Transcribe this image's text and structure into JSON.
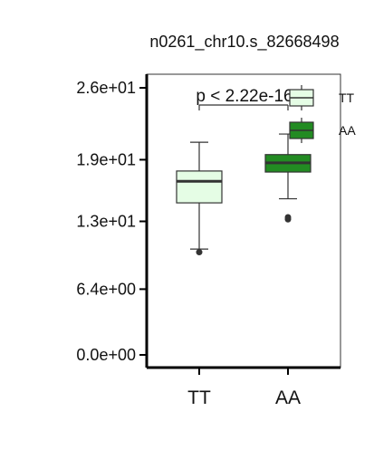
{
  "chart_data": {
    "type": "box",
    "title": "n0261_chr10.s_82668498",
    "xlabel": "",
    "ylabel": "",
    "categories": [
      "TT",
      "AA"
    ],
    "ylim": [
      -1.0,
      27.5
    ],
    "yticks": [
      {
        "value": 0.0,
        "label": "0.0e+00"
      },
      {
        "value": 6.4,
        "label": "6.4e+00"
      },
      {
        "value": 13.0,
        "label": "1.3e+01"
      },
      {
        "value": 19.0,
        "label": "1.9e+01"
      },
      {
        "value": 26.0,
        "label": "2.6e+01"
      }
    ],
    "boxes": [
      {
        "category": "TT",
        "whisker_low": 10.3,
        "q1": 14.8,
        "median": 16.9,
        "q3": 17.9,
        "whisker_high": 20.7,
        "outliers": [
          10.0
        ],
        "color": "#e5fde5"
      },
      {
        "category": "AA",
        "whisker_low": 15.2,
        "q1": 17.8,
        "median": 18.7,
        "q3": 19.5,
        "whisker_high": 21.5,
        "outliers": [
          13.2,
          13.4
        ],
        "color": "#228b22"
      }
    ],
    "annotation": {
      "text": "p < 2.22e-16"
    },
    "legend": {
      "position": "top-right",
      "entries": [
        {
          "label": "TT",
          "color": "#e5fde5"
        },
        {
          "label": "AA",
          "color": "#228b22"
        }
      ]
    },
    "grid": false
  }
}
